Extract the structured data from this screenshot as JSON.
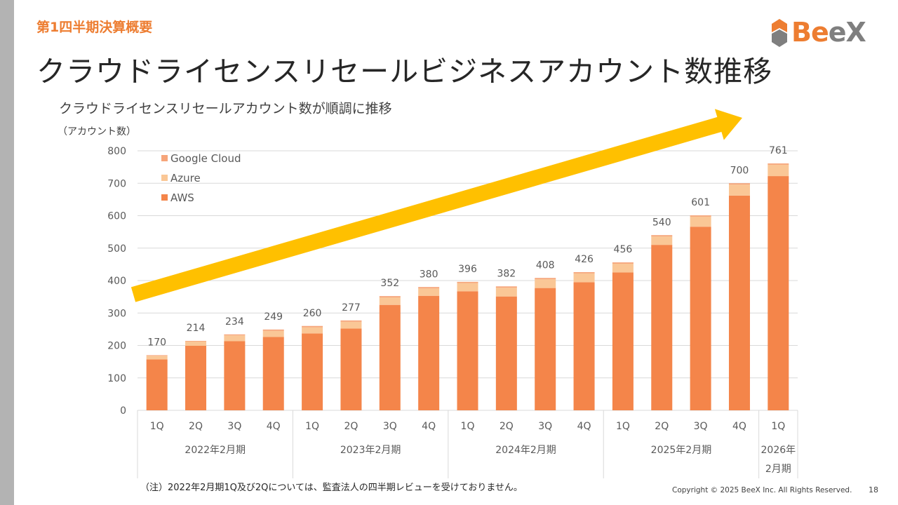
{
  "slide": {
    "section_label": "第1四半期決算概要",
    "title": "クラウドライセンスリセールビジネスアカウント数推移",
    "subtitle": "クラウドライセンスリセールアカウント数が順調に推移",
    "logo": {
      "mark": "Be",
      "mark_accent": "eX"
    },
    "note": "（注）2022年2月期1Q及び2Qについては、監査法人の四半期レビューを受けておりません。",
    "copyright": "Copyright © 2025 BeeX Inc. All Rights Reserved.",
    "page_number": "18"
  },
  "chart_data": {
    "type": "bar",
    "stacked": true,
    "ylabel": "（アカウント数）",
    "ylim": [
      0,
      800
    ],
    "yticks": [
      0,
      100,
      200,
      300,
      400,
      500,
      600,
      700,
      800
    ],
    "categories": [
      "1Q",
      "2Q",
      "3Q",
      "4Q",
      "1Q",
      "2Q",
      "3Q",
      "4Q",
      "1Q",
      "2Q",
      "3Q",
      "4Q",
      "1Q",
      "2Q",
      "3Q",
      "4Q",
      "1Q"
    ],
    "groups": [
      {
        "label": "2022年2月期",
        "count": 4
      },
      {
        "label": "2023年2月期",
        "count": 4
      },
      {
        "label": "2024年2月期",
        "count": 4
      },
      {
        "label": "2025年2月期",
        "count": 4
      },
      {
        "label": "2026年2月期",
        "count": 1
      }
    ],
    "series": [
      {
        "name": "AWS",
        "color": "#F4854A",
        "values": [
          157,
          199,
          213,
          226,
          237,
          252,
          325,
          353,
          367,
          351,
          377,
          395,
          425,
          510,
          566,
          662,
          722
        ]
      },
      {
        "name": "Azure",
        "color": "#FAC796",
        "values": [
          11,
          13,
          18,
          19,
          19,
          21,
          23,
          23,
          25,
          27,
          27,
          27,
          27,
          26,
          31,
          34,
          35
        ]
      },
      {
        "name": "Google Cloud",
        "color": "#F6A57A",
        "values": [
          2,
          2,
          3,
          4,
          4,
          4,
          4,
          4,
          4,
          4,
          4,
          4,
          4,
          4,
          4,
          4,
          4
        ]
      }
    ],
    "totals": [
      170,
      214,
      234,
      249,
      260,
      277,
      352,
      380,
      396,
      382,
      408,
      426,
      456,
      540,
      601,
      700,
      761
    ],
    "legend_position": "top-left",
    "legend_order": [
      "Google Cloud",
      "Azure",
      "AWS"
    ],
    "grid": true,
    "trend_arrow_color": "#FFC000"
  }
}
